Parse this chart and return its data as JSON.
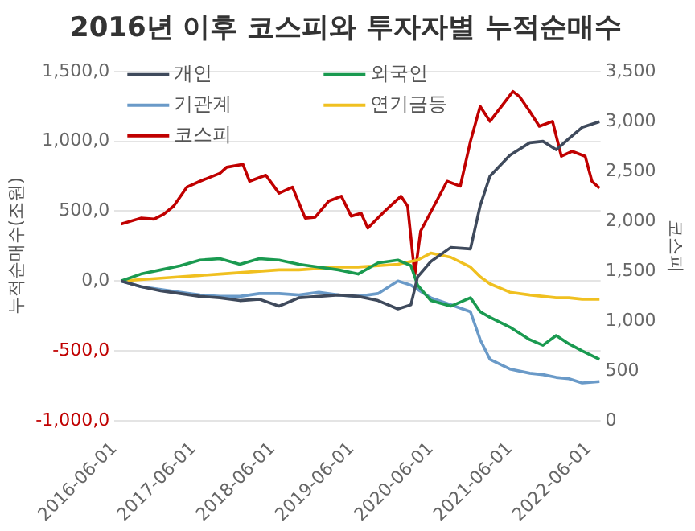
{
  "chart_data": {
    "type": "line",
    "title": "2016년 이후 코스피와 투자자별 누적순매수",
    "ylabel": "누적순매수(조원)",
    "y2label": "코스피",
    "x": [
      "2016-07-01",
      "2016-10-01",
      "2017-01-01",
      "2017-04-01",
      "2017-07-01",
      "2017-10-01",
      "2018-01-01",
      "2018-04-01",
      "2018-07-01",
      "2018-10-01",
      "2019-01-01",
      "2019-04-01",
      "2019-07-01",
      "2019-10-01",
      "2020-01-01",
      "2020-03-01",
      "2020-04-01",
      "2020-06-01",
      "2020-09-01",
      "2020-12-01",
      "2021-01-15",
      "2021-03-01",
      "2021-06-01",
      "2021-09-01",
      "2021-11-01",
      "2022-01-01",
      "2022-03-01",
      "2022-05-01",
      "2022-07-20"
    ],
    "series": [
      {
        "name": "개인",
        "color": "#3f4a5c",
        "values": [
          0,
          -40,
          -70,
          -90,
          -110,
          -120,
          -140,
          -130,
          -180,
          -120,
          -110,
          -100,
          -110,
          -140,
          -200,
          -170,
          30,
          140,
          240,
          230,
          540,
          750,
          900,
          990,
          1000,
          940,
          1020,
          1100,
          1140
        ]
      },
      {
        "name": "외국인",
        "color": "#1a9a50",
        "values": [
          0,
          50,
          80,
          110,
          150,
          160,
          120,
          160,
          150,
          120,
          100,
          80,
          50,
          130,
          150,
          110,
          -30,
          -140,
          -180,
          -120,
          -220,
          -260,
          -330,
          -420,
          -460,
          -390,
          -450,
          -500,
          -560
        ]
      },
      {
        "name": "기관계",
        "color": "#6a9ac8",
        "values": [
          0,
          -40,
          -60,
          -80,
          -100,
          -110,
          -110,
          -90,
          -90,
          -100,
          -80,
          -100,
          -110,
          -90,
          0,
          -30,
          -60,
          -120,
          -170,
          -220,
          -420,
          -560,
          -630,
          -660,
          -670,
          -690,
          -700,
          -730,
          -720
        ]
      },
      {
        "name": "연기금등",
        "color": "#f0c020",
        "values": [
          0,
          10,
          20,
          30,
          40,
          50,
          60,
          70,
          80,
          80,
          90,
          100,
          100,
          110,
          120,
          140,
          150,
          200,
          170,
          100,
          30,
          -20,
          -80,
          -100,
          -110,
          -120,
          -120,
          -130,
          -130
        ]
      },
      {
        "name": "코스피",
        "color": "#c00000",
        "axis": "y2",
        "x": [
          "2016-07-01",
          "2016-10-01",
          "2016-12-01",
          "2017-01-15",
          "2017-03-01",
          "2017-05-01",
          "2017-07-01",
          "2017-10-01",
          "2017-11-01",
          "2018-01-15",
          "2018-02-15",
          "2018-05-01",
          "2018-07-01",
          "2018-09-01",
          "2018-10-30",
          "2018-12-15",
          "2019-02-15",
          "2019-04-15",
          "2019-05-30",
          "2019-07-15",
          "2019-08-15",
          "2019-11-01",
          "2020-01-15",
          "2020-02-15",
          "2020-03-19",
          "2020-04-15",
          "2020-06-15",
          "2020-08-15",
          "2020-10-15",
          "2020-12-01",
          "2021-01-15",
          "2021-03-01",
          "2021-06-15",
          "2021-07-15",
          "2021-09-01",
          "2021-10-15",
          "2021-12-15",
          "2022-01-25",
          "2022-03-15",
          "2022-05-15",
          "2022-06-15",
          "2022-07-20"
        ],
        "values": [
          1970,
          2030,
          2020,
          2070,
          2150,
          2340,
          2400,
          2480,
          2540,
          2570,
          2400,
          2460,
          2280,
          2340,
          2030,
          2040,
          2200,
          2250,
          2050,
          2080,
          1930,
          2100,
          2250,
          2150,
          1460,
          1900,
          2150,
          2400,
          2350,
          2800,
          3150,
          3000,
          3300,
          3250,
          3100,
          2950,
          3000,
          2650,
          2700,
          2650,
          2400,
          2330
        ]
      }
    ],
    "xlim": [
      "2016-06-01",
      "2022-07-25"
    ],
    "xticks": [
      "2016-06-01",
      "2017-06-01",
      "2018-06-01",
      "2019-06-01",
      "2020-06-01",
      "2021-06-01",
      "2022-06-01"
    ],
    "ylim": [
      -1000,
      1500
    ],
    "yticks": [
      {
        "value": -1000,
        "label": "-1,000,0"
      },
      {
        "value": -500,
        "label": "-500,0"
      },
      {
        "value": 0,
        "label": "0,0"
      },
      {
        "value": 500,
        "label": "500,0"
      },
      {
        "value": 1000,
        "label": "1,000,0"
      },
      {
        "value": 1500,
        "label": "1,500,0"
      }
    ],
    "y2lim": [
      0,
      3500
    ],
    "y2ticks": [
      0,
      {
        "value": 500,
        "label": "500"
      },
      {
        "value": 1000,
        "label": "1,000"
      },
      {
        "value": 1500,
        "label": "1,500"
      },
      {
        "value": 2000,
        "label": "2,000"
      },
      {
        "value": 2500,
        "label": "2,500"
      },
      {
        "value": 3000,
        "label": "3,000"
      },
      {
        "value": 3500,
        "label": "3,500"
      }
    ],
    "grid": "y",
    "legend": "top left",
    "marker": "none",
    "line_style": "solid"
  }
}
